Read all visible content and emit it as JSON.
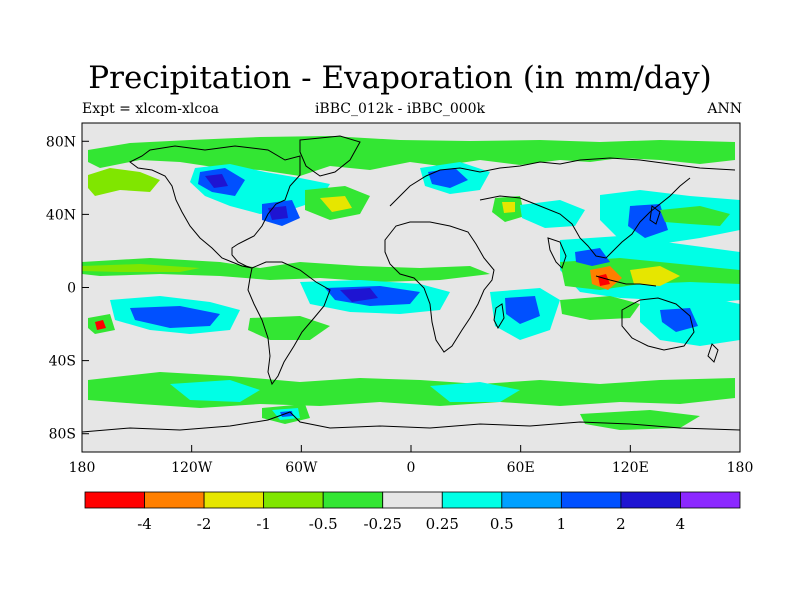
{
  "header": {
    "title": "Precipitation - Evaporation (in mm/day)",
    "left_label": "Expt = xlcom-xlcoa",
    "center_label": "iBBC_012k - iBBC_000k",
    "right_label": "ANN"
  },
  "map": {
    "projection": "cylindrical-equidistant",
    "lon_range": [
      -180,
      180
    ],
    "lat_range": [
      -90,
      90
    ],
    "y_ticks": [
      {
        "lat": 80,
        "label": "80N"
      },
      {
        "lat": 40,
        "label": "40N"
      },
      {
        "lat": 0,
        "label": "0"
      },
      {
        "lat": -40,
        "label": "40S"
      },
      {
        "lat": -80,
        "label": "80S"
      }
    ],
    "x_ticks": [
      {
        "lon": -180,
        "label": "180"
      },
      {
        "lon": -120,
        "label": "120W"
      },
      {
        "lon": -60,
        "label": "60W"
      },
      {
        "lon": 0,
        "label": "0"
      },
      {
        "lon": 60,
        "label": "60E"
      },
      {
        "lon": 120,
        "label": "120E"
      },
      {
        "lon": 180,
        "label": "180"
      }
    ],
    "background_color": "#e6e6e6",
    "coast_color": "#000000"
  },
  "colorbar": {
    "colors": [
      "#ff0000",
      "#ff7f00",
      "#e6e600",
      "#80e600",
      "#33e633",
      "#e6e6e6",
      "#00ffe6",
      "#00a0ff",
      "#0050ff",
      "#1e14d2",
      "#8c28ff"
    ],
    "labels": [
      "-4",
      "-2",
      "-1",
      "-0.5",
      "-0.25",
      "0.25",
      "0.5",
      "1",
      "2",
      "4"
    ]
  }
}
